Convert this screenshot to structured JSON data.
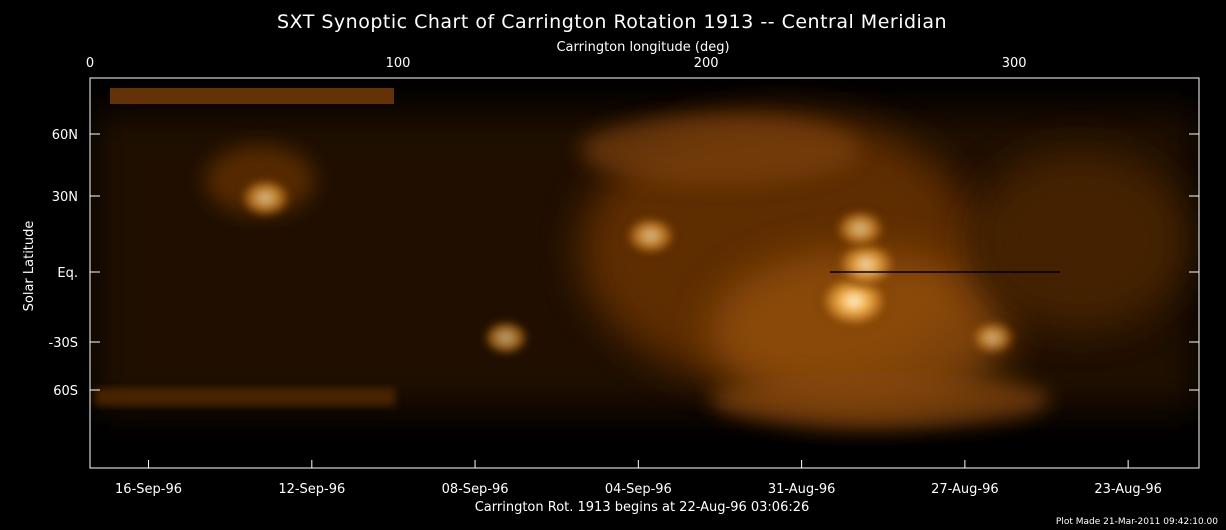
{
  "chart_data": {
    "type": "heatmap",
    "title": "SXT Synoptic Chart of Carrington Rotation 1913 -- Central Meridian",
    "top_axis": {
      "label": "Carrington longitude (deg)",
      "range": [
        0,
        360
      ],
      "ticks": [
        {
          "value": 0,
          "label": "0"
        },
        {
          "value": 100,
          "label": "100"
        },
        {
          "value": 200,
          "label": "200"
        },
        {
          "value": 300,
          "label": "300"
        }
      ]
    },
    "y_axis": {
      "label": "Solar Latitude",
      "ticks": [
        {
          "value": 60,
          "label": "60N"
        },
        {
          "value": 30,
          "label": "30N"
        },
        {
          "value": 0,
          "label": "Eq."
        },
        {
          "value": -30,
          "label": "-30S"
        },
        {
          "value": -60,
          "label": "60S"
        }
      ]
    },
    "bottom_axis": {
      "label": "Carrington Rot. 1913 begins at 22-Aug-96 03:06:26",
      "ticks": [
        {
          "value": 19,
          "label": "16-Sep-96"
        },
        {
          "value": 72,
          "label": "12-Sep-96"
        },
        {
          "value": 125,
          "label": "08-Sep-96"
        },
        {
          "value": 178,
          "label": "04-Sep-96"
        },
        {
          "value": 231,
          "label": "31-Aug-96"
        },
        {
          "value": 284,
          "label": "27-Aug-96"
        },
        {
          "value": 337,
          "label": "23-Aug-96"
        }
      ]
    },
    "colormap": [
      "#000000",
      "#5a2a00",
      "#b06010",
      "#f0a040",
      "#fff0c0"
    ],
    "bright_regions": [
      {
        "lon": 248,
        "lat": -12,
        "intensity": 1.0
      },
      {
        "lon": 252,
        "lat": 3,
        "intensity": 0.8
      },
      {
        "lon": 250,
        "lat": 18,
        "intensity": 0.6
      },
      {
        "lon": 182,
        "lat": 15,
        "intensity": 0.6
      },
      {
        "lon": 57,
        "lat": 32,
        "intensity": 0.6
      },
      {
        "lon": 135,
        "lat": -28,
        "intensity": 0.5
      },
      {
        "lon": 293,
        "lat": -28,
        "intensity": 0.5
      }
    ]
  },
  "footer": "Plot Made 21-Mar-2011 09:42:10.00"
}
